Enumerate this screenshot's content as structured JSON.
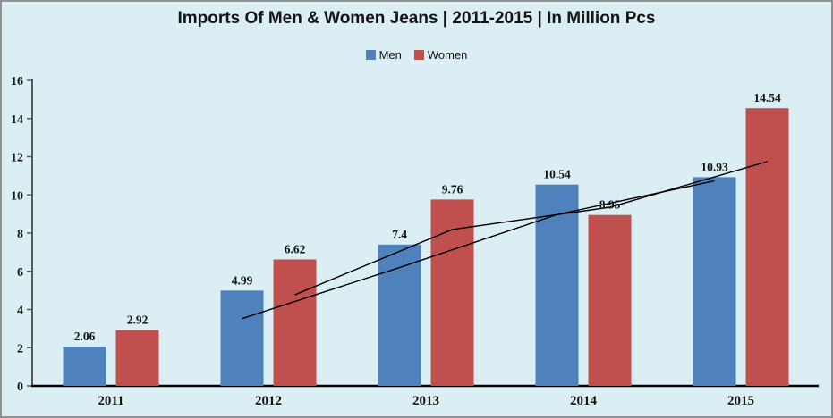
{
  "frame": {
    "background": "#daeef3",
    "border_color": "#8c9091",
    "text_color": "#141414",
    "axis_line_color": "#595959",
    "baseline_color": "#000000"
  },
  "chart_data": {
    "type": "bar",
    "title": "Imports Of Men & Women Jeans | 2011-2015 | In Million Pcs",
    "categories": [
      "2011",
      "2012",
      "2013",
      "2014",
      "2015"
    ],
    "series": [
      {
        "name": "Men",
        "color": "#4F81BD",
        "values": [
          2.06,
          4.99,
          7.4,
          10.54,
          10.93
        ],
        "labels": [
          "2.06",
          "4.99",
          "7.4",
          "10.54",
          "10.93"
        ]
      },
      {
        "name": "Women",
        "color": "#C0504D",
        "values": [
          2.92,
          6.62,
          9.76,
          8.95,
          14.54
        ],
        "labels": [
          "2.92",
          "6.62",
          "9.76",
          "8.95",
          "14.54"
        ]
      }
    ],
    "trendlines": [
      {
        "name": "men-moving-average",
        "series": "Men",
        "kind": "moving_average",
        "period": 2,
        "color": "#000000",
        "x_categories": [
          "2012",
          "2013",
          "2014",
          "2015"
        ],
        "values": [
          3.525,
          6.195,
          8.97,
          10.735
        ]
      },
      {
        "name": "women-moving-average",
        "series": "Women",
        "kind": "moving_average",
        "period": 2,
        "color": "#000000",
        "x_categories": [
          "2012",
          "2013",
          "2014",
          "2015"
        ],
        "values": [
          4.77,
          8.19,
          9.355,
          11.745
        ]
      }
    ],
    "xlabel": "",
    "ylabel": "",
    "ylim": [
      0,
      16
    ],
    "ytick_step": 2,
    "yticks": [
      "0",
      "2",
      "4",
      "6",
      "8",
      "10",
      "12",
      "14",
      "16"
    ],
    "grid": false,
    "legend_position": "top-center"
  }
}
